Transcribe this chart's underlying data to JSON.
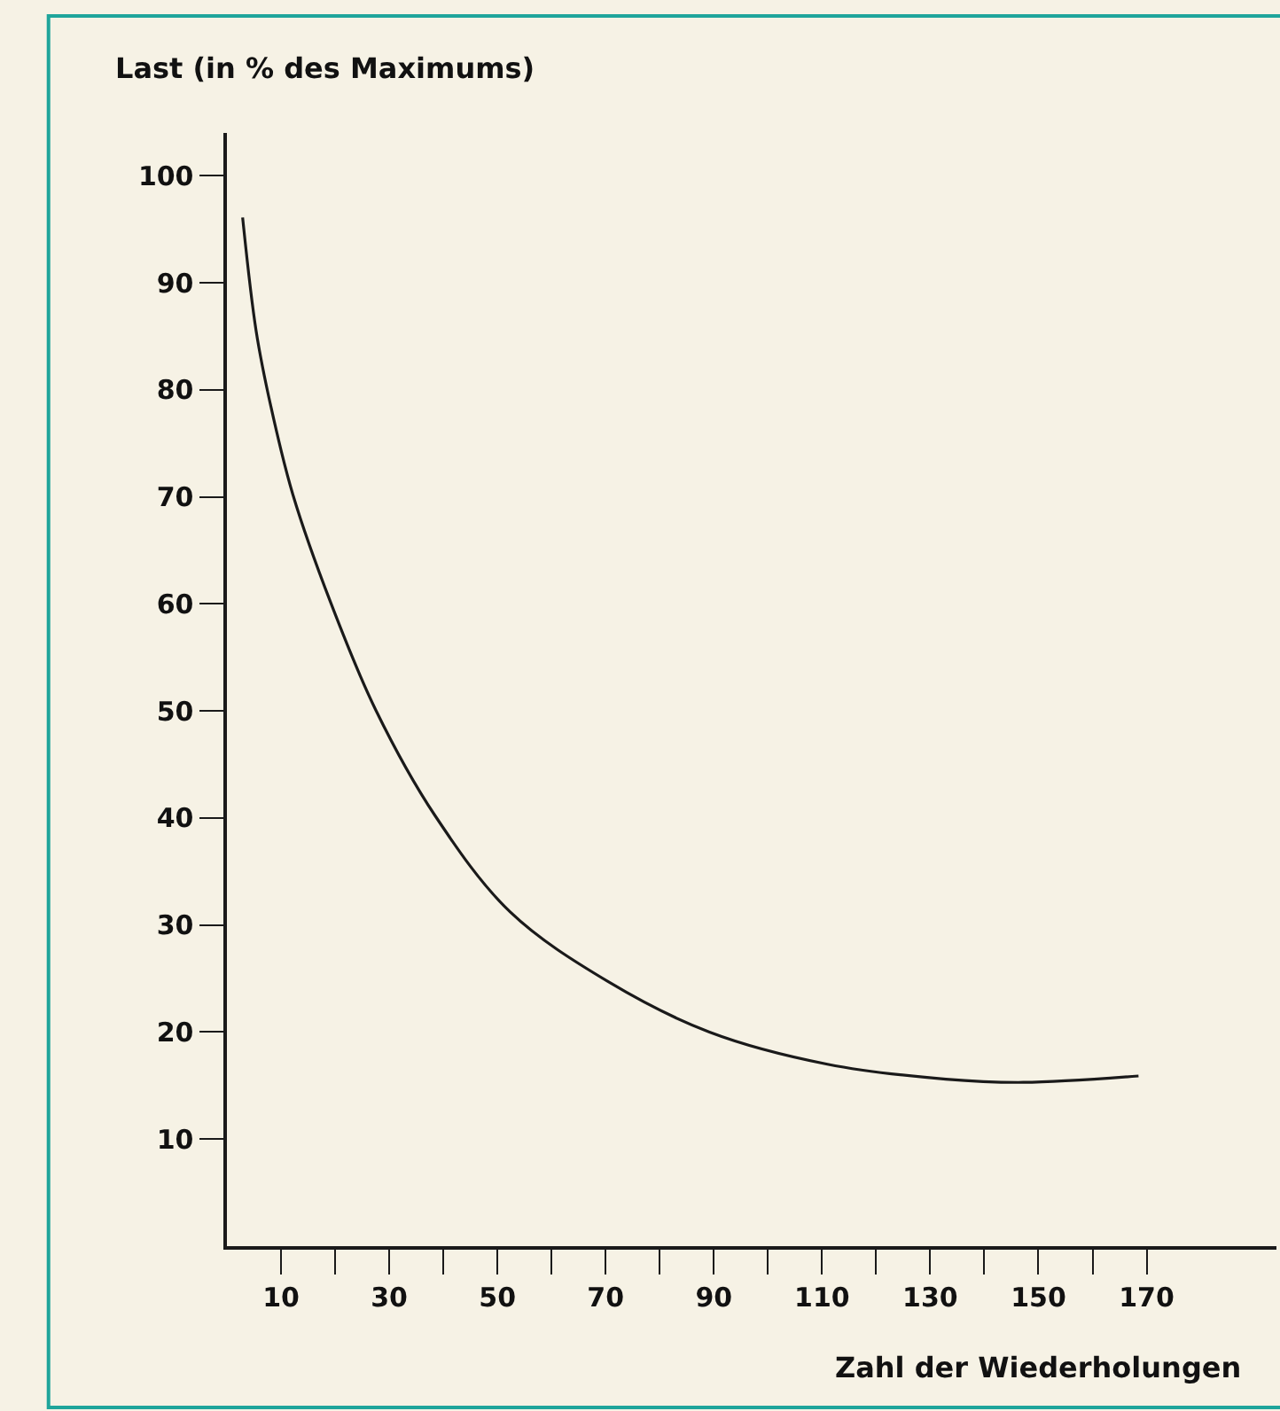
{
  "chart_data": {
    "type": "line",
    "xlabel": "Zahl der Wiederholungen",
    "ylabel": "Last (in % des Maximums)",
    "x": [
      2.9,
      5.4,
      8.1,
      12.2,
      19.2,
      27.5,
      38.5,
      52.4,
      70.5,
      89.2,
      111,
      132.9,
      147.2,
      168.5
    ],
    "series": [
      {
        "color": "#1a1a1a",
        "values": [
          96.1,
          85.5,
          78.5,
          70.2,
          60.1,
          50.1,
          40.2,
          31.2,
          24.7,
          20.0,
          17.0,
          15.6,
          15.3,
          15.9
        ]
      }
    ],
    "xlim": [
      0,
      194
    ],
    "ylim": [
      0,
      104
    ],
    "xticks": [
      {
        "value": 10,
        "label": "10"
      },
      {
        "value": 20,
        "label": null
      },
      {
        "value": 30,
        "label": "30"
      },
      {
        "value": 40,
        "label": null
      },
      {
        "value": 50,
        "label": "50"
      },
      {
        "value": 60,
        "label": null
      },
      {
        "value": 70,
        "label": "70"
      },
      {
        "value": 80,
        "label": null
      },
      {
        "value": 90,
        "label": "90"
      },
      {
        "value": 100,
        "label": null
      },
      {
        "value": 110,
        "label": "110"
      },
      {
        "value": 120,
        "label": null
      },
      {
        "value": 130,
        "label": "130"
      },
      {
        "value": 140,
        "label": null
      },
      {
        "value": 150,
        "label": "150"
      },
      {
        "value": 160,
        "label": null
      },
      {
        "value": 170,
        "label": "170"
      }
    ],
    "yticks": [
      10,
      20,
      30,
      40,
      50,
      60,
      70,
      80,
      90,
      100
    ],
    "marker": "none",
    "line_style": "solid"
  }
}
